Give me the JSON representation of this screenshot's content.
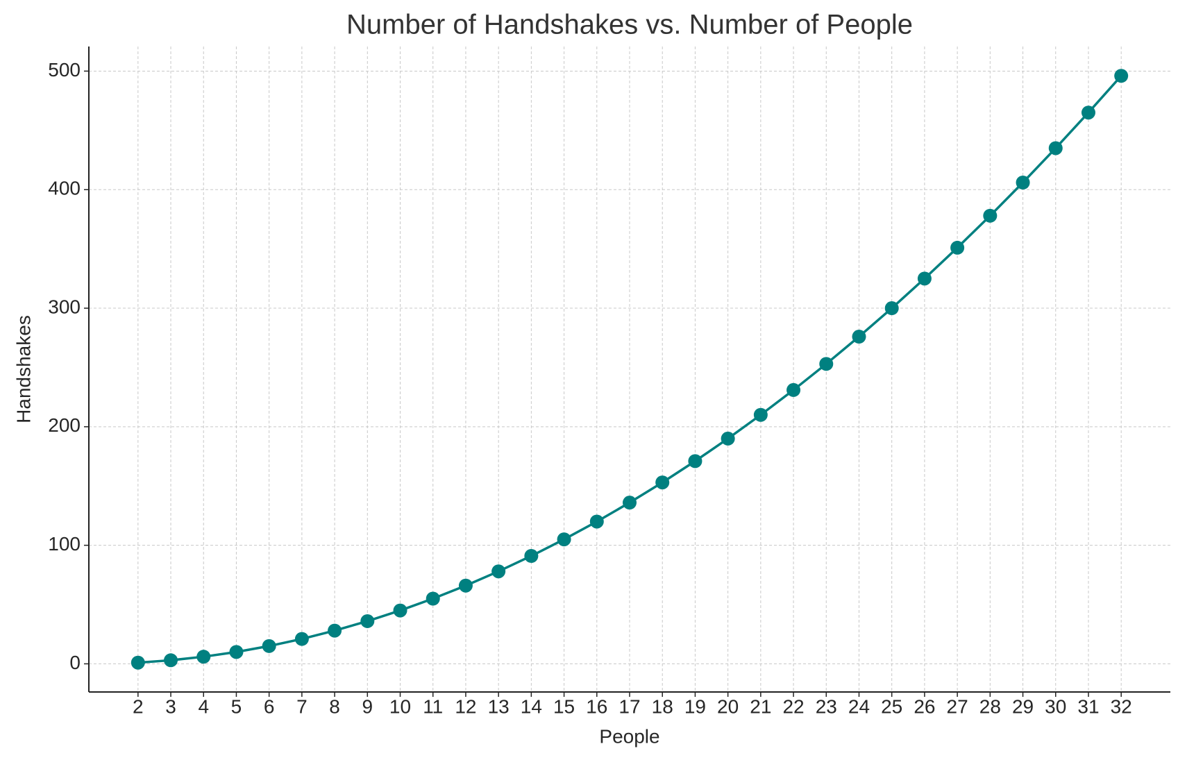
{
  "chart_data": {
    "type": "line",
    "title": "Number of Handshakes vs. Number of People",
    "x_label": "People",
    "y_label": "Handshakes",
    "x": [
      2,
      3,
      4,
      5,
      6,
      7,
      8,
      9,
      10,
      11,
      12,
      13,
      14,
      15,
      16,
      17,
      18,
      19,
      20,
      21,
      22,
      23,
      24,
      25,
      26,
      27,
      28,
      29,
      30,
      31,
      32
    ],
    "series": [
      {
        "name": "Handshakes",
        "color": "#008080",
        "values": [
          1,
          3,
          6,
          10,
          15,
          21,
          28,
          36,
          45,
          55,
          66,
          78,
          91,
          105,
          120,
          136,
          153,
          171,
          190,
          210,
          231,
          253,
          276,
          300,
          325,
          351,
          378,
          406,
          435,
          465,
          496
        ]
      }
    ],
    "xlim": [
      0.5,
      33.5
    ],
    "xticks": [
      2,
      3,
      4,
      5,
      6,
      7,
      8,
      9,
      10,
      11,
      12,
      13,
      14,
      15,
      16,
      17,
      18,
      19,
      20,
      21,
      22,
      23,
      24,
      25,
      26,
      27,
      28,
      29,
      30,
      31,
      32
    ],
    "ylim": [
      -23.75,
      520.75
    ],
    "yticks": [
      0,
      100,
      200,
      300,
      400,
      500
    ],
    "grid": true,
    "markers": true
  }
}
